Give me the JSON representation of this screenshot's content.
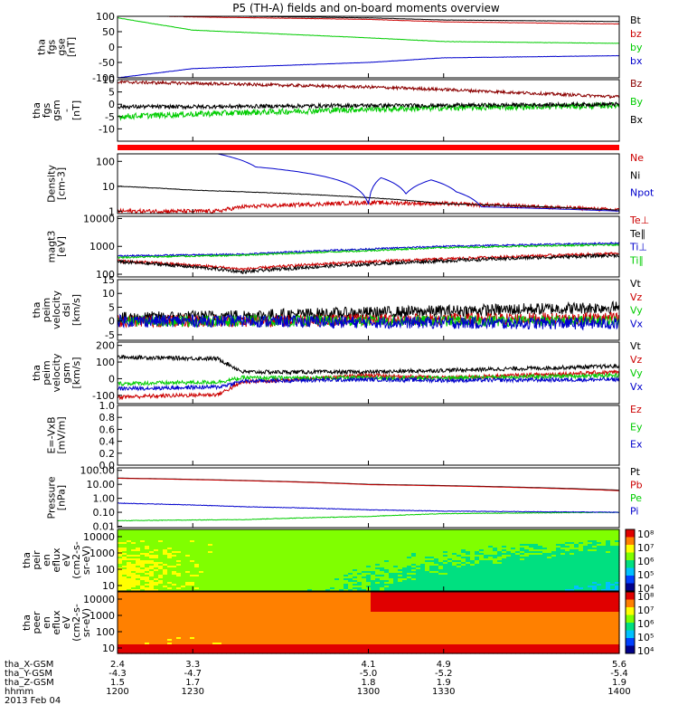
{
  "title": "P5 (TH-A) fields and on-board moments overview",
  "colors": {
    "black": "#000000",
    "red": "#cc0000",
    "green": "#00cc00",
    "blue": "#0000cc",
    "darkred": "#8b0000"
  },
  "chart_data": [
    {
      "type": "line",
      "id": "fgs-gse",
      "ylabel_lines": [
        "tha",
        "fgs",
        "gse",
        "[nT]"
      ],
      "ylim": [
        -100,
        100
      ],
      "yticks": [
        "100",
        "50",
        "0",
        "-50",
        "-100"
      ],
      "series": [
        {
          "name": "Bt",
          "color": "#000000",
          "x": [
            1200,
            1230,
            1300,
            1330,
            1400
          ],
          "y": [
            108,
            102,
            95,
            88,
            83
          ],
          "noise": 0.5
        },
        {
          "name": "bz",
          "color": "#cc0000",
          "x": [
            1200,
            1230,
            1300,
            1330,
            1400
          ],
          "y": [
            104,
            98,
            90,
            82,
            75
          ],
          "noise": 0.5
        },
        {
          "name": "by",
          "color": "#00cc00",
          "x": [
            1200,
            1230,
            1300,
            1330,
            1400
          ],
          "y": [
            95,
            55,
            30,
            18,
            12
          ],
          "noise": 0.5
        },
        {
          "name": "bx",
          "color": "#0000cc",
          "x": [
            1200,
            1230,
            1300,
            1330,
            1400
          ],
          "y": [
            -100,
            -70,
            -50,
            -35,
            -28
          ],
          "noise": 0.5
        }
      ]
    },
    {
      "type": "line",
      "id": "fgs-gsm",
      "ylabel_lines": [
        "tha",
        "fgs",
        "gsm",
        "-",
        "[nT]"
      ],
      "ylim": [
        -15,
        10
      ],
      "yticks": [
        "10",
        "5",
        "0",
        "-5",
        "-10"
      ],
      "series": [
        {
          "name": "Bz",
          "color": "#8b0000",
          "x": [
            1200,
            1230,
            1300,
            1330,
            1400
          ],
          "y": [
            9,
            8.5,
            7,
            6,
            3
          ],
          "noise": 0.6
        },
        {
          "name": "By",
          "color": "#00cc00",
          "x": [
            1200,
            1230,
            1300,
            1330,
            1400
          ],
          "y": [
            -5,
            -4,
            -2,
            -1.5,
            -0.5
          ],
          "noise": 1.2
        },
        {
          "name": "Bx",
          "color": "#000000",
          "x": [
            1200,
            1230,
            1300,
            1330,
            1400
          ],
          "y": [
            -1,
            -1,
            -0.5,
            -0.5,
            0
          ],
          "noise": 0.8
        }
      ]
    },
    {
      "type": "line",
      "id": "density",
      "log": true,
      "ylabel_lines": [
        "Density",
        "[cm-3]"
      ],
      "ylim": [
        0.8,
        200
      ],
      "yticks": [
        "100",
        "10",
        "1"
      ],
      "ytick_values": [
        100,
        10,
        1
      ],
      "series": [
        {
          "name": "Ne",
          "color": "#cc0000",
          "x": [
            1200,
            1240,
            1250,
            1300,
            1330,
            1400
          ],
          "y": [
            1,
            1,
            1.5,
            2.2,
            2,
            1.1
          ],
          "noise": 0.08
        },
        {
          "name": "Ni",
          "color": "#000000",
          "x": [
            1200,
            1230,
            1300,
            1330,
            1400
          ],
          "y": [
            10,
            7,
            3.5,
            2,
            1.1
          ],
          "noise": 0.01
        },
        {
          "name": "Npot",
          "color": "#0000cc",
          "x": [
            1240,
            1245,
            1255,
            1300,
            1305,
            1315,
            1325,
            1335,
            1345,
            1400
          ],
          "y": [
            200,
            150,
            60,
            2,
            22,
            5,
            18,
            6,
            1.5,
            1
          ],
          "noise": 0
        }
      ]
    },
    {
      "type": "line",
      "id": "temp",
      "log": true,
      "ylabel_lines": [
        "magt3",
        "[eV]"
      ],
      "ylim": [
        80,
        12000
      ],
      "yticks": [
        "10000",
        "1000",
        "100"
      ],
      "ytick_values": [
        10000,
        1000,
        100
      ],
      "series": [
        {
          "name": "Te⊥",
          "color": "#cc0000",
          "x": [
            1200,
            1250,
            1300,
            1330,
            1400
          ],
          "y": [
            300,
            150,
            280,
            350,
            550
          ],
          "noise": 0.05
        },
        {
          "name": "Te∥",
          "color": "#000000",
          "x": [
            1200,
            1250,
            1300,
            1330,
            1400
          ],
          "y": [
            280,
            120,
            230,
            300,
            480
          ],
          "noise": 0.06
        },
        {
          "name": "Ti⊥",
          "color": "#0000cc",
          "x": [
            1200,
            1250,
            1300,
            1330,
            1400
          ],
          "y": [
            450,
            520,
            800,
            1000,
            1300
          ],
          "noise": 0.03
        },
        {
          "name": "Ti∥",
          "color": "#00cc00",
          "x": [
            1200,
            1250,
            1300,
            1330,
            1400
          ],
          "y": [
            400,
            480,
            700,
            900,
            1150
          ],
          "noise": 0.03
        }
      ]
    },
    {
      "type": "line",
      "id": "velocity-dsl",
      "ylabel_lines": [
        "tha",
        "peim",
        "velocity",
        "dsl",
        "[km/s]"
      ],
      "ylim": [
        -7,
        15
      ],
      "yticks": [
        "15",
        "10",
        "5",
        "0",
        "-5"
      ],
      "series": [
        {
          "name": "Vt",
          "color": "#000000",
          "x": [
            1200,
            1250,
            1300,
            1400
          ],
          "y": [
            1,
            2,
            3,
            5
          ],
          "noise": 2.2
        },
        {
          "name": "Vz",
          "color": "#cc0000",
          "x": [
            1200,
            1250,
            1300,
            1400
          ],
          "y": [
            0,
            0,
            0.5,
            1
          ],
          "noise": 2.2
        },
        {
          "name": "Vy",
          "color": "#00cc00",
          "x": [
            1200,
            1250,
            1300,
            1400
          ],
          "y": [
            0,
            0,
            0,
            0
          ],
          "noise": 2
        },
        {
          "name": "Vx",
          "color": "#0000cc",
          "x": [
            1200,
            1250,
            1300,
            1400
          ],
          "y": [
            0,
            0,
            -0.5,
            -1
          ],
          "noise": 2.2
        }
      ]
    },
    {
      "type": "line",
      "id": "velocity-gsm",
      "ylabel_lines": [
        "tha",
        "peim",
        "velocity",
        "gsm",
        "[km/s]"
      ],
      "ylim": [
        -150,
        220
      ],
      "yticks": [
        "200",
        "100",
        "0",
        "-100"
      ],
      "series": [
        {
          "name": "Vt",
          "color": "#000000",
          "x": [
            1200,
            1240,
            1250,
            1300,
            1330,
            1400
          ],
          "y": [
            130,
            120,
            40,
            40,
            50,
            75
          ],
          "noise": 12
        },
        {
          "name": "Vz",
          "color": "#cc0000",
          "x": [
            1200,
            1240,
            1250,
            1300,
            1330,
            1400
          ],
          "y": [
            -110,
            -95,
            -20,
            20,
            5,
            40
          ],
          "noise": 12
        },
        {
          "name": "Vy",
          "color": "#00cc00",
          "x": [
            1200,
            1240,
            1250,
            1300,
            1330,
            1400
          ],
          "y": [
            -30,
            -20,
            5,
            5,
            5,
            20
          ],
          "noise": 12
        },
        {
          "name": "Vx",
          "color": "#0000cc",
          "x": [
            1200,
            1240,
            1250,
            1300,
            1330,
            1400
          ],
          "y": [
            -60,
            -50,
            -15,
            -5,
            -10,
            -5
          ],
          "noise": 12
        }
      ]
    },
    {
      "type": "line",
      "id": "exb",
      "ylabel_lines": [
        "E=-VxB",
        "[mV/m]"
      ],
      "ylim": [
        0,
        1
      ],
      "yticks": [
        "1.0",
        "0.8",
        "0.6",
        "0.4",
        "0.2",
        "0.0"
      ],
      "series": [
        {
          "name": "Ez",
          "color": "#cc0000",
          "x": [],
          "y": []
        },
        {
          "name": "Ey",
          "color": "#00cc00",
          "x": [],
          "y": []
        },
        {
          "name": "Ex",
          "color": "#0000cc",
          "x": [],
          "y": []
        }
      ]
    },
    {
      "type": "line",
      "id": "pressure",
      "log": true,
      "ylabel_lines": [
        "Pressure",
        "[nPa]"
      ],
      "ylim": [
        0.008,
        150
      ],
      "yticks": [
        "100.00",
        "10.00",
        "1.00",
        "0.10",
        "0.01"
      ],
      "ytick_values": [
        100,
        10,
        1,
        0.1,
        0.01
      ],
      "series": [
        {
          "name": "Pt",
          "color": "#000000",
          "x": [
            1200,
            1300,
            1400
          ],
          "y": [
            28,
            10,
            3.8
          ],
          "noise": 0
        },
        {
          "name": "Pb",
          "color": "#cc0000",
          "x": [
            1200,
            1300,
            1400
          ],
          "y": [
            27,
            9.5,
            3.5
          ],
          "noise": 0
        },
        {
          "name": "Pe",
          "color": "#00cc00",
          "x": [
            1200,
            1250,
            1300,
            1330,
            1400
          ],
          "y": [
            0.025,
            0.03,
            0.05,
            0.08,
            0.1
          ],
          "noise": 0.02
        },
        {
          "name": "Pi",
          "color": "#0000cc",
          "x": [
            1200,
            1250,
            1300,
            1330,
            1400
          ],
          "y": [
            0.45,
            0.25,
            0.15,
            0.12,
            0.1
          ],
          "noise": 0.02
        }
      ]
    },
    {
      "type": "heatmap",
      "id": "peir-spec",
      "ylabel_lines": [
        "tha",
        "peir",
        "en",
        "eflux",
        "eV",
        "(cm2-s-",
        "sr-eV)"
      ],
      "yticks": [
        "10000",
        "1000",
        "100",
        "10"
      ],
      "colorbar_ticks": [
        "10⁸",
        "10⁷",
        "10⁶",
        "10⁵",
        "10⁴"
      ]
    },
    {
      "type": "heatmap",
      "id": "peer-spec",
      "ylabel_lines": [
        "tha",
        "peer",
        "en",
        "eflux",
        "eV",
        "(cm2-s-",
        "sr-eV)"
      ],
      "yticks": [
        "10000",
        "1000",
        "100",
        "10"
      ],
      "colorbar_ticks": [
        "10⁸",
        "10⁷",
        "10⁶",
        "10⁵",
        "10⁴"
      ]
    }
  ],
  "xaxis": {
    "times": [
      1200,
      1230,
      1300,
      1330,
      1400
    ],
    "rows": [
      {
        "label": "tha_X-GSM",
        "values": [
          "2.4",
          "3.3",
          "4.1",
          "4.9",
          "5.6"
        ]
      },
      {
        "label": "tha_Y-GSM",
        "values": [
          "-4.3",
          "-4.7",
          "-5.0",
          "-5.2",
          "-5.4"
        ]
      },
      {
        "label": "tha_Z-GSM",
        "values": [
          "1.5",
          "1.7",
          "1.8",
          "1.9",
          "1.9"
        ]
      },
      {
        "label": "hhmm",
        "values": [
          "1200",
          "1230",
          "1300",
          "1330",
          "1400"
        ]
      }
    ],
    "date": "2013 Feb 04"
  }
}
